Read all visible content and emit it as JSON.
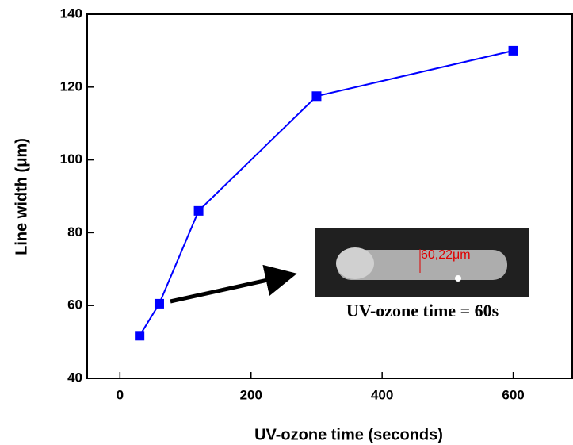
{
  "chart_data": {
    "type": "line",
    "x_label": "UV-ozone time (seconds)",
    "y_label": "Line width (μm)",
    "x": [
      30,
      60,
      120,
      300,
      600
    ],
    "series": [
      {
        "color": "#0000ff",
        "values": [
          51.7,
          60.5,
          86,
          117.5,
          130
        ]
      }
    ],
    "xlim": [
      -50,
      690
    ],
    "ylim": [
      40,
      140
    ],
    "xticks": [
      0,
      200,
      400,
      600
    ],
    "yticks": [
      40,
      60,
      80,
      100,
      120,
      140
    ],
    "annotations": {
      "measurement": "60,22μm",
      "inset_caption": "UV-ozone time = 60s"
    }
  }
}
